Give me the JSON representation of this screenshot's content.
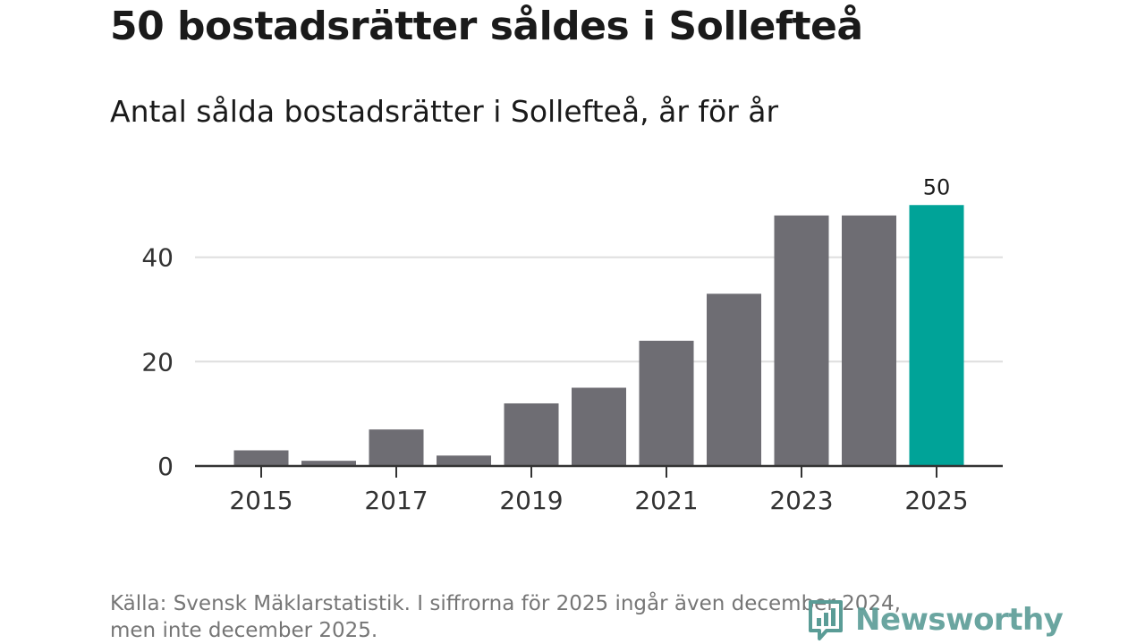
{
  "title": "50 bostadsrätter såldes i Sollefteå",
  "subtitle": "Antal sålda bostadsrätter i Sollefteå, år för år",
  "note": {
    "line1": "Källa: Svensk Mäklarstatistik. I siffrorna för 2025 ingår även december 2024,",
    "line2": "men inte december 2025."
  },
  "logo": {
    "text": "Newsworthy",
    "icon": "newsworthy-logo-icon"
  },
  "colors": {
    "bar": "#6e6d73",
    "highlight": "#00a398",
    "grid": "#dedede",
    "axis": "#333333",
    "tick_text": "#333333"
  },
  "chart_data": {
    "type": "bar",
    "title": "50 bostadsrätter såldes i Sollefteå",
    "subtitle": "Antal sålda bostadsrätter i Sollefteå, år för år",
    "xlabel": "",
    "ylabel": "",
    "categories": [
      "2015",
      "2016",
      "2017",
      "2018",
      "2019",
      "2020",
      "2021",
      "2022",
      "2023",
      "2024",
      "2025"
    ],
    "values": [
      3,
      1,
      7,
      2,
      12,
      15,
      24,
      33,
      48,
      48,
      50
    ],
    "highlight_index": 10,
    "data_labels": [
      {
        "index": 10,
        "text": "50"
      }
    ],
    "ylim": [
      0,
      50
    ],
    "yticks": [
      0,
      20,
      40
    ],
    "xticks": [
      "2015",
      "2017",
      "2019",
      "2021",
      "2023",
      "2025"
    ],
    "grid": true,
    "legend": "none"
  }
}
